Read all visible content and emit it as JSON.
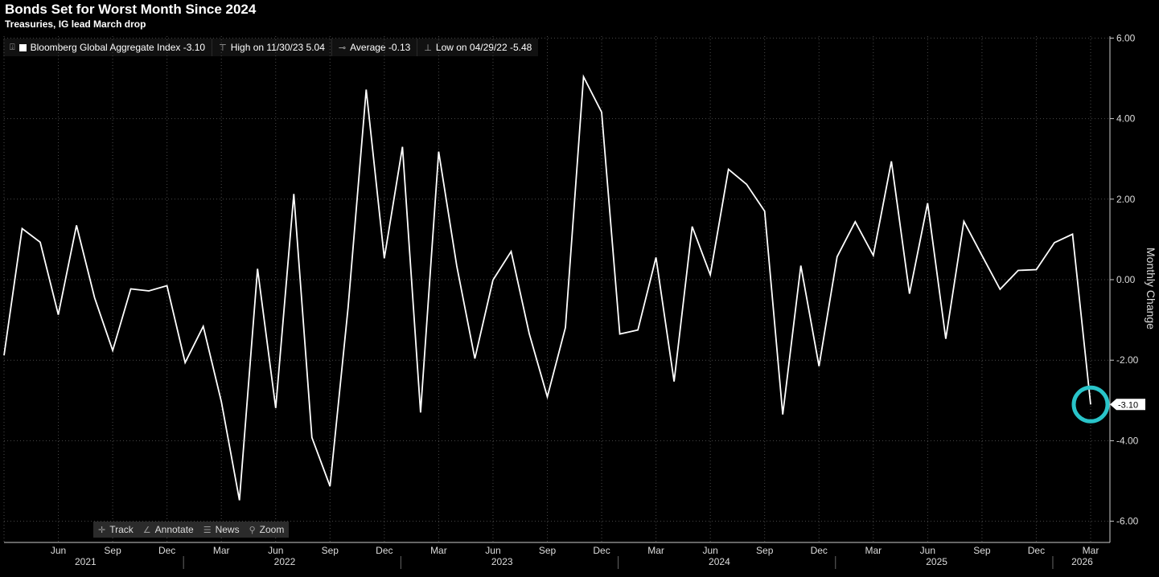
{
  "header": {
    "title": "Bonds Set for Worst Month Since 2024",
    "subtitle": "Treasuries, IG lead March drop"
  },
  "legend": {
    "series_label": "Bloomberg Global Aggregate Index -3.10",
    "high_label": "High on 11/30/23 5.04",
    "average_label": "Average -0.13",
    "low_label": "Low on 04/29/22 -5.48"
  },
  "toolbar": {
    "track_label": "Track",
    "annotate_label": "Annotate",
    "news_label": "News",
    "zoom_label": "Zoom"
  },
  "colors": {
    "background": "#000000",
    "line": "#ffffff",
    "highlight_ring": "#29c4c9",
    "grid": "#4a4a4a"
  },
  "chart_data": {
    "type": "line",
    "title": "Bonds Set for Worst Month Since 2024",
    "subtitle": "Treasuries, IG lead March drop",
    "ylabel": "Monthly Change",
    "xlabel": "",
    "ylim": [
      -6.5,
      6.0
    ],
    "y_ticks": [
      6,
      4,
      2,
      0,
      -2,
      -4,
      -6
    ],
    "y_tick_labels": [
      "6.00",
      "4.00",
      "2.00",
      "0.00",
      "-2.00",
      "-4.00",
      "-6.00"
    ],
    "x_range": [
      "2021-03",
      "2026-04"
    ],
    "month_ticks": [
      "Jun",
      "Sep",
      "Dec",
      "Mar",
      "Jun",
      "Sep",
      "Dec",
      "Mar",
      "Jun",
      "Sep",
      "Dec",
      "Mar",
      "Jun",
      "Sep",
      "Dec",
      "Mar",
      "Jun",
      "Sep",
      "Dec",
      "Mar"
    ],
    "year_labels": [
      "2021",
      "2022",
      "2023",
      "2024",
      "2025",
      "2026"
    ],
    "grid": true,
    "legend_position": "top-left",
    "last_value_label": "-3.10",
    "series": [
      {
        "name": "Bloomberg Global Aggregate Index",
        "color": "#ffffff",
        "x": [
          "2021-03",
          "2021-04",
          "2021-05",
          "2021-06",
          "2021-07",
          "2021-08",
          "2021-09",
          "2021-10",
          "2021-11",
          "2021-12",
          "2022-01",
          "2022-02",
          "2022-03",
          "2022-04",
          "2022-05",
          "2022-06",
          "2022-07",
          "2022-08",
          "2022-09",
          "2022-10",
          "2022-11",
          "2022-12",
          "2023-01",
          "2023-02",
          "2023-03",
          "2023-04",
          "2023-05",
          "2023-06",
          "2023-07",
          "2023-08",
          "2023-09",
          "2023-10",
          "2023-11",
          "2023-12",
          "2024-01",
          "2024-02",
          "2024-03",
          "2024-04",
          "2024-05",
          "2024-06",
          "2024-07",
          "2024-08",
          "2024-09",
          "2024-10",
          "2024-11",
          "2024-12",
          "2025-01",
          "2025-02",
          "2025-03",
          "2025-04",
          "2025-05",
          "2025-06",
          "2025-07",
          "2025-08",
          "2025-09",
          "2025-10",
          "2025-11",
          "2025-12",
          "2026-01",
          "2026-02",
          "2026-03"
        ],
        "y": [
          -1.88,
          1.27,
          0.93,
          -0.87,
          1.35,
          -0.45,
          -1.76,
          -0.23,
          -0.28,
          -0.15,
          -2.06,
          -1.16,
          -3.03,
          -5.48,
          0.27,
          -3.19,
          2.13,
          -3.92,
          -5.13,
          -0.69,
          4.72,
          0.53,
          3.3,
          -3.3,
          3.18,
          0.34,
          -1.96,
          -0.01,
          0.7,
          -1.34,
          -2.91,
          -1.19,
          5.04,
          4.16,
          -1.35,
          -1.25,
          0.55,
          -2.53,
          1.32,
          0.12,
          2.74,
          2.37,
          1.7,
          -3.35,
          0.35,
          -2.15,
          0.57,
          1.44,
          0.6,
          2.94,
          -0.35,
          1.9,
          -1.47,
          1.45,
          0.6,
          -0.24,
          0.23,
          0.25,
          0.92,
          1.13,
          -3.1
        ]
      }
    ]
  }
}
